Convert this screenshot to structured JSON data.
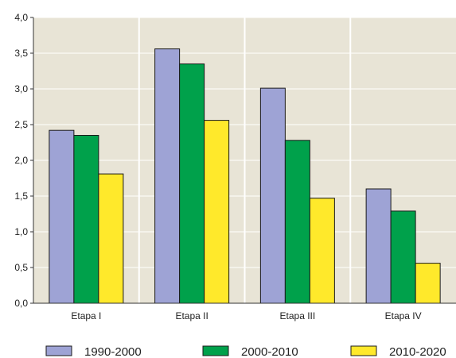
{
  "chart_data": {
    "type": "bar",
    "title": "",
    "xlabel": "",
    "ylabel": "",
    "categories": [
      "Etapa I",
      "Etapa II",
      "Etapa III",
      "Etapa IV"
    ],
    "series": [
      {
        "name": "1990-2000",
        "color": "#9ea3d5",
        "values": [
          2.42,
          3.56,
          3.01,
          1.6
        ]
      },
      {
        "name": "2000-2010",
        "color": "#00a14b",
        "values": [
          2.35,
          3.35,
          2.28,
          1.29
        ]
      },
      {
        "name": "2010-2020",
        "color": "#ffe92b",
        "values": [
          1.81,
          2.56,
          1.47,
          0.56
        ]
      }
    ],
    "ylim": [
      0,
      4
    ],
    "yticks": [
      "0,0",
      "0,5",
      "1,0",
      "1,5",
      "2,0",
      "2,5",
      "3,0",
      "3,5",
      "4,0"
    ],
    "grid": true,
    "legend": "bottom",
    "plot_background": "#e8e4d6",
    "grid_color": "#ffffff"
  }
}
